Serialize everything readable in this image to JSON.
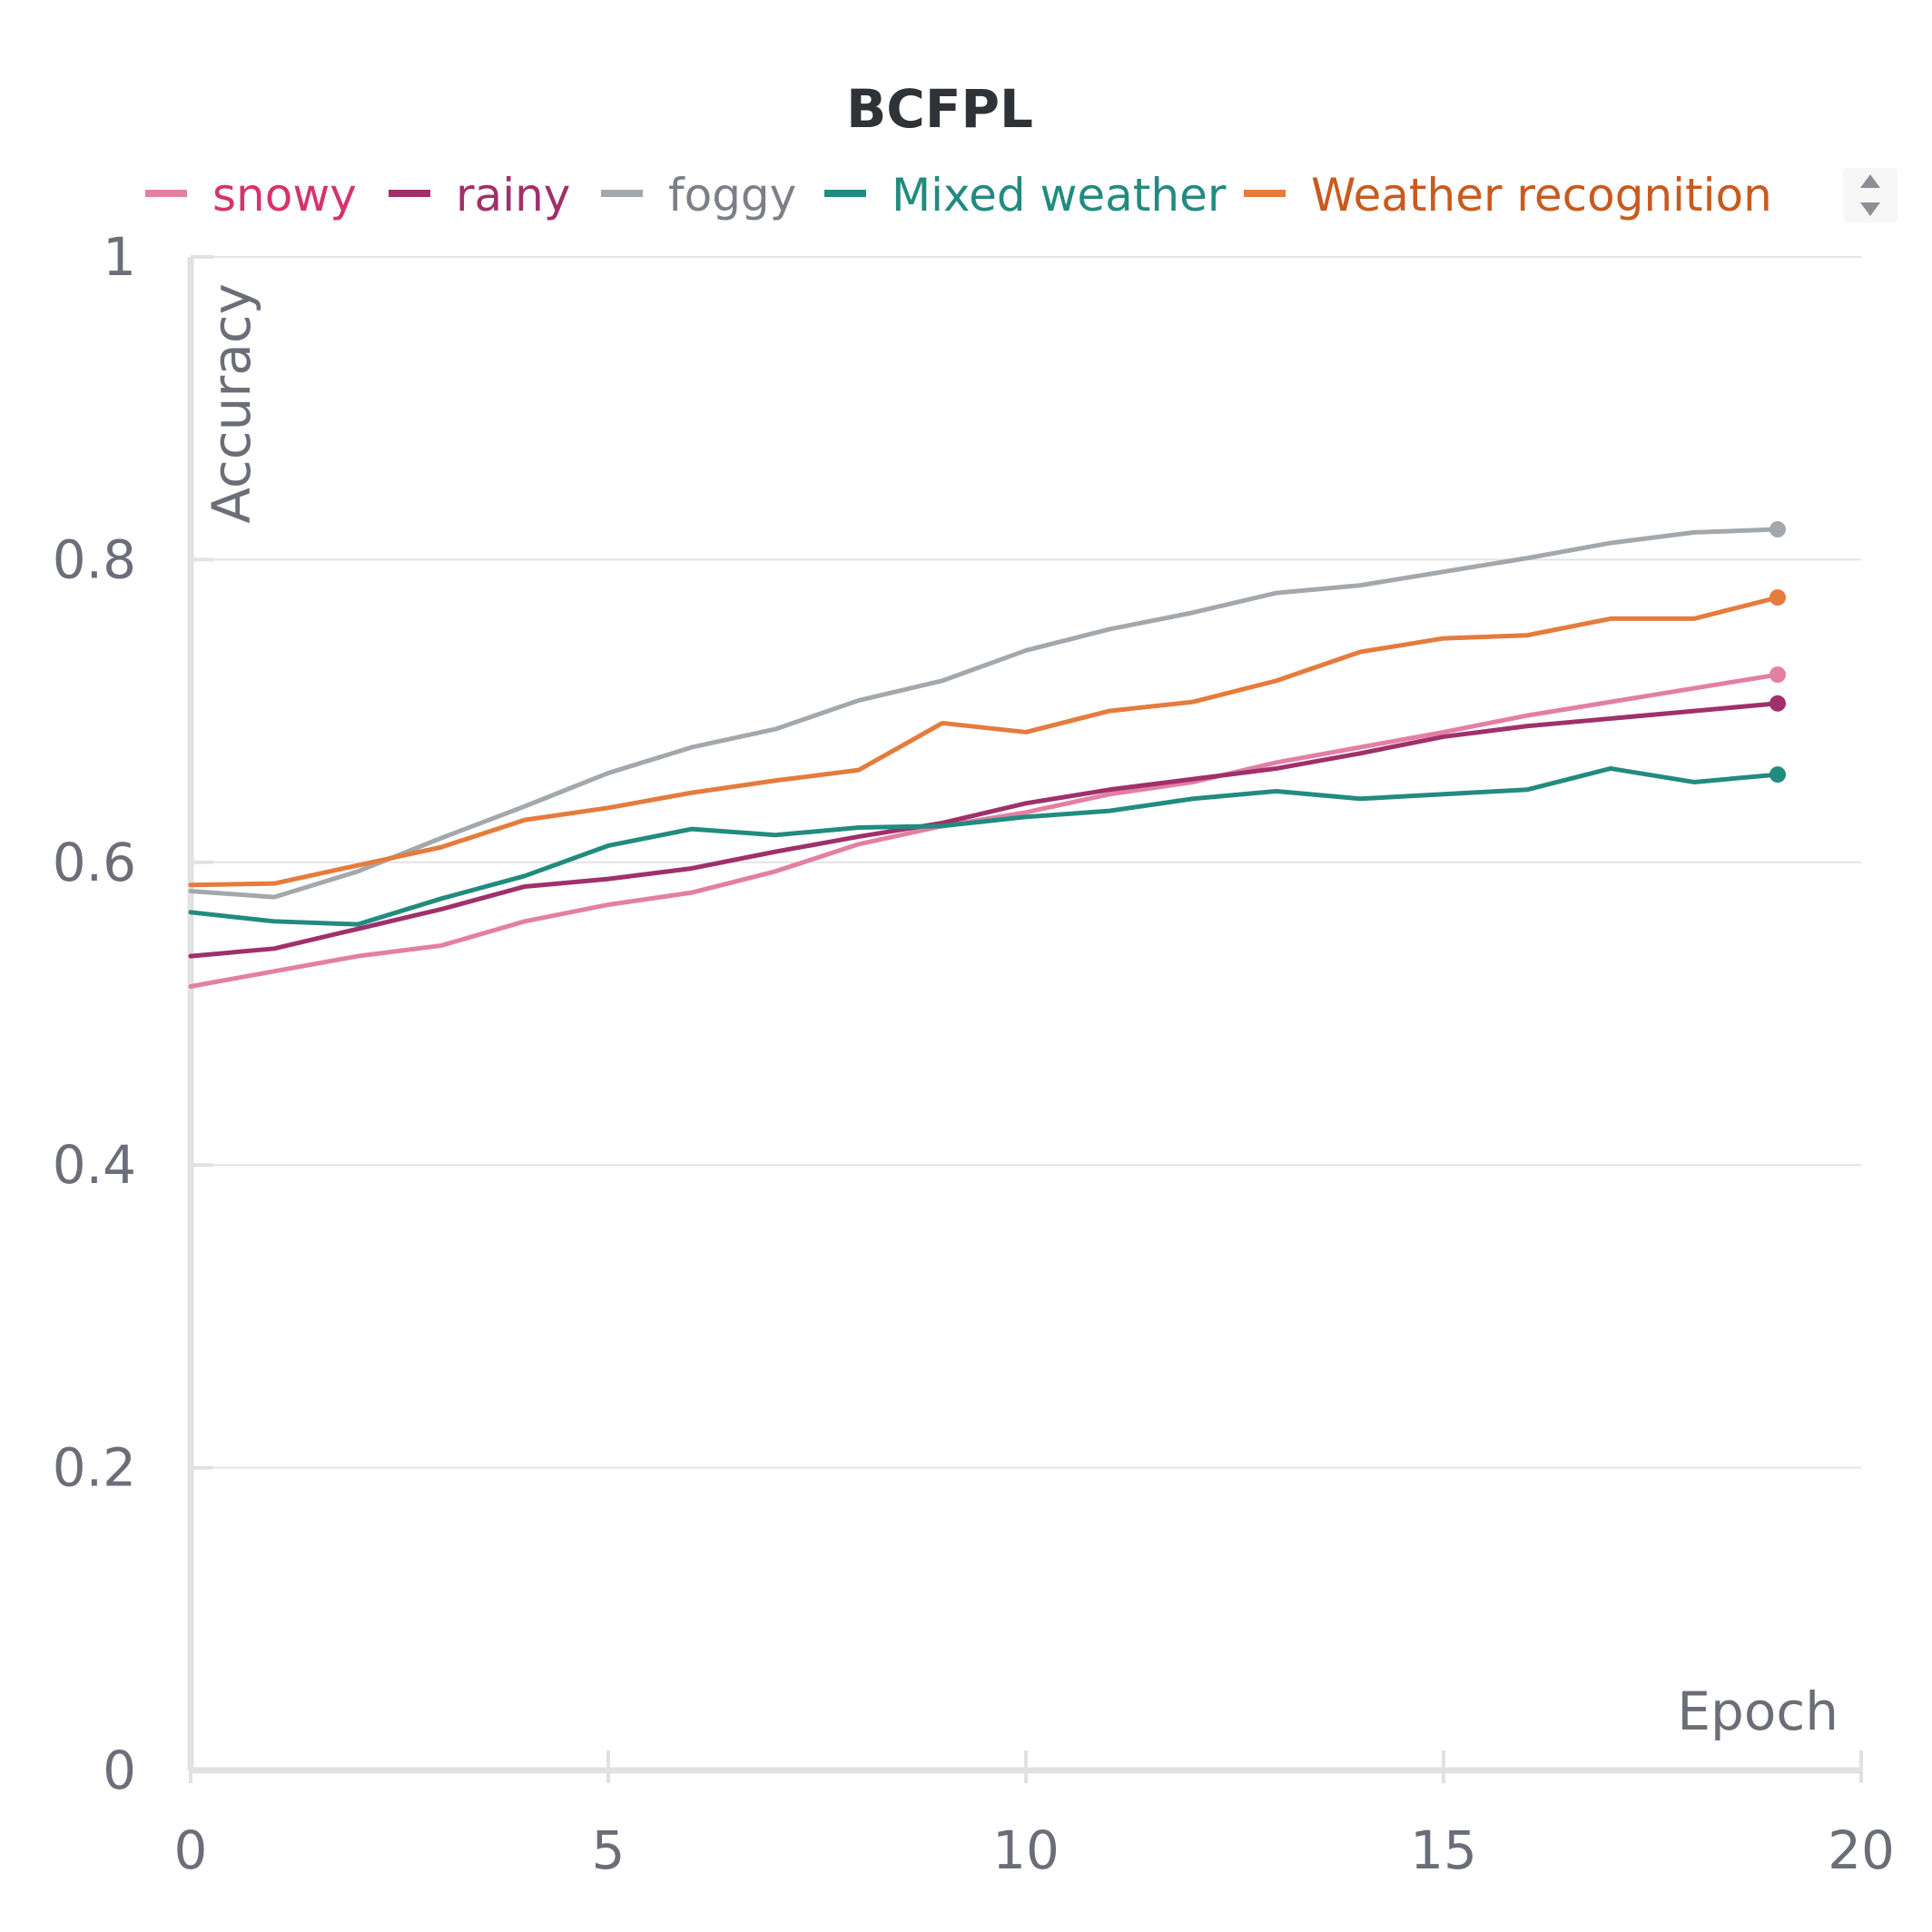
{
  "chart_data": {
    "type": "line",
    "title": "BCFPL",
    "xlabel": "Epoch",
    "ylabel": "Accuracy",
    "xlim": [
      0,
      20
    ],
    "ylim": [
      0,
      1
    ],
    "x_ticks": [
      "0",
      "5",
      "10",
      "15",
      "20"
    ],
    "y_ticks": [
      "0",
      "0.2",
      "0.4",
      "0.6",
      "0.8",
      "1"
    ],
    "grid": true,
    "legend_position": "top",
    "x": [
      0,
      1,
      2,
      3,
      4,
      5,
      6,
      7,
      8,
      9,
      10,
      11,
      12,
      13,
      14,
      15,
      16,
      17,
      18,
      19
    ],
    "series": [
      {
        "name": "snowy",
        "color": "#e37fa3",
        "text_color": "#d6336c",
        "values": [
          0.518,
          0.528,
          0.538,
          0.545,
          0.561,
          0.572,
          0.58,
          0.594,
          0.612,
          0.624,
          0.633,
          0.645,
          0.653,
          0.666,
          0.676,
          0.686,
          0.697,
          0.706,
          0.715,
          0.724
        ]
      },
      {
        "name": "rainy",
        "color": "#a0306a",
        "text_color": "#a0306a",
        "values": [
          0.538,
          0.543,
          0.556,
          0.569,
          0.584,
          0.589,
          0.596,
          0.607,
          0.617,
          0.626,
          0.639,
          0.648,
          0.655,
          0.662,
          0.672,
          0.683,
          0.69,
          0.695,
          0.7,
          0.705
        ]
      },
      {
        "name": "foggy",
        "color": "#a3a8ad",
        "text_color": "#7c7f85",
        "values": [
          0.581,
          0.577,
          0.594,
          0.616,
          0.637,
          0.659,
          0.676,
          0.688,
          0.707,
          0.72,
          0.74,
          0.754,
          0.765,
          0.778,
          0.783,
          0.792,
          0.801,
          0.811,
          0.818,
          0.82
        ]
      },
      {
        "name": "Mixed weather",
        "color": "#228b7f",
        "text_color": "#228b7f",
        "values": [
          0.567,
          0.561,
          0.559,
          0.576,
          0.591,
          0.611,
          0.622,
          0.618,
          0.623,
          0.624,
          0.63,
          0.634,
          0.642,
          0.647,
          0.642,
          0.645,
          0.648,
          0.662,
          0.653,
          0.658
        ]
      },
      {
        "name": "Weather recognition",
        "color": "#e57b3c",
        "text_color": "#c95a1e",
        "values": [
          0.585,
          0.586,
          0.598,
          0.61,
          0.628,
          0.636,
          0.646,
          0.654,
          0.661,
          0.692,
          0.686,
          0.7,
          0.706,
          0.72,
          0.739,
          0.748,
          0.75,
          0.761,
          0.761,
          0.775
        ]
      }
    ]
  },
  "legend_scroll_icon": "up-down-arrows-icon"
}
